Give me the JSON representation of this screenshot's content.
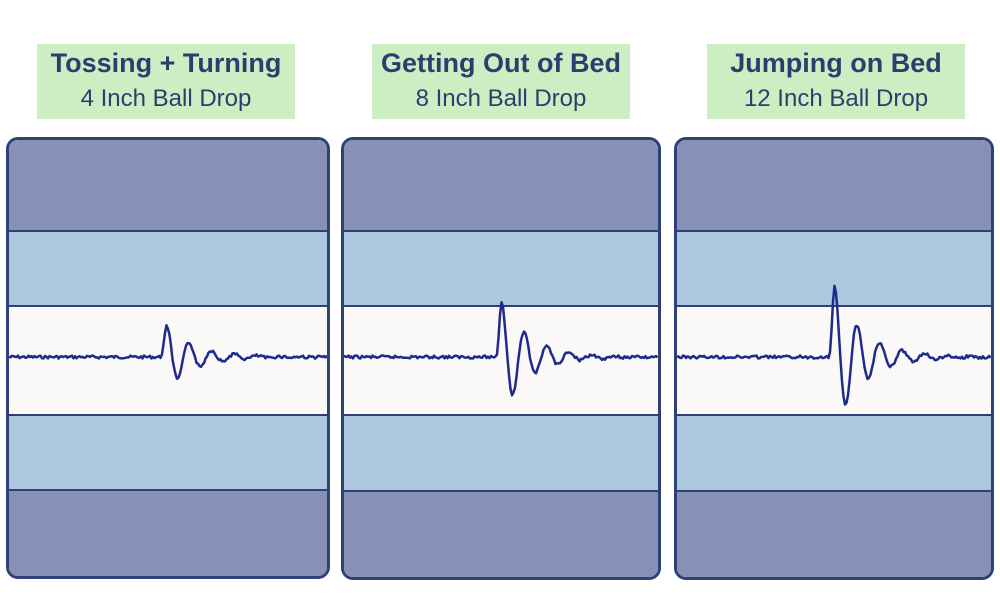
{
  "panels": [
    {
      "title": "Tossing + Turning",
      "subtitle": "4 Inch Ball Drop",
      "waveform": {
        "amplitude_scale": 1
      }
    },
    {
      "title": "Getting Out of Bed",
      "subtitle": "8 Inch Ball Drop",
      "waveform": {
        "amplitude_scale": 1.7
      }
    },
    {
      "title": "Jumping on Bed",
      "subtitle": "12 Inch Ball Drop",
      "waveform": {
        "amplitude_scale": 2.2
      }
    }
  ],
  "colors": {
    "header_bg": "#cdeec2",
    "header_text": "#2c3d6e",
    "outer_band": "#8592b5",
    "inner_band": "#abc8de",
    "center_band": "#fbf8f8",
    "border": "#2f3f78",
    "waveform": "#1f2a8c"
  }
}
